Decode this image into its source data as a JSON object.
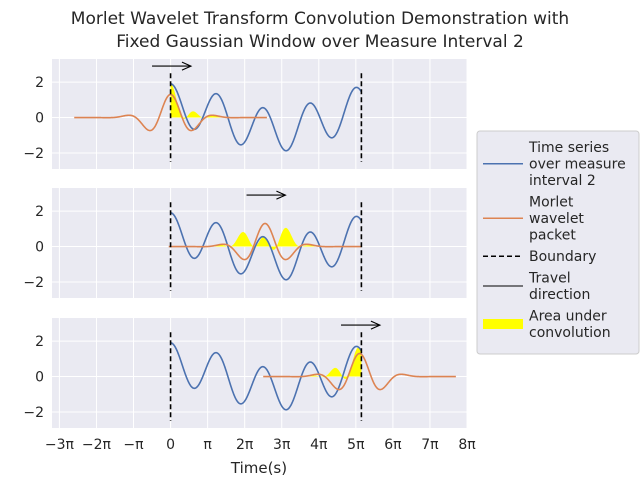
{
  "chart_data": {
    "type": "line",
    "title_lines": [
      "Morlet Wavelet Transform Convolution Demonstration with",
      "Fixed Gaussian Window over Measure Interval 2"
    ],
    "xlabel": "Time(s)",
    "xlim": [
      -3.2,
      8.0
    ],
    "ylim": [
      -2.9,
      3.3
    ],
    "x_ticks": [
      {
        "value": -3,
        "label": "−3π"
      },
      {
        "value": -2,
        "label": "−2π"
      },
      {
        "value": -1,
        "label": "−π"
      },
      {
        "value": 0,
        "label": "0"
      },
      {
        "value": 1,
        "label": "π"
      },
      {
        "value": 2,
        "label": "2π"
      },
      {
        "value": 3,
        "label": "3π"
      },
      {
        "value": 4,
        "label": "4π"
      },
      {
        "value": 5,
        "label": "5π"
      },
      {
        "value": 6,
        "label": "6π"
      },
      {
        "value": 7,
        "label": "7π"
      },
      {
        "value": 8,
        "label": "8π"
      }
    ],
    "y_ticks": [
      {
        "value": 2,
        "label": "2"
      },
      {
        "value": 0,
        "label": "0"
      },
      {
        "value": -2,
        "label": "−2"
      }
    ],
    "x_unit": "pi",
    "boundaries": [
      0,
      5.15
    ],
    "time_series": {
      "name": "Time series over measure interval 2",
      "color": "#4c72b0",
      "x_range": [
        0,
        5.15
      ],
      "components": [
        {
          "amplitude": 1.2,
          "frequency": 1.6
        },
        {
          "amplitude": 0.7,
          "frequency": 0.35
        }
      ]
    },
    "wavelet": {
      "name": "Morlet wavelet packet",
      "color": "#dd8452",
      "amplitude": 1.3,
      "frequency": 1.6,
      "gaussian_sigma": 0.55,
      "half_width": 2.6
    },
    "panels": [
      {
        "wavelet_center": 0.0,
        "arrow": {
          "from": -0.5,
          "to": 0.55,
          "y": 2.9
        }
      },
      {
        "wavelet_center": 2.55,
        "arrow": {
          "from": 2.05,
          "to": 3.1,
          "y": 2.9
        }
      },
      {
        "wavelet_center": 5.1,
        "arrow": {
          "from": 4.6,
          "to": 5.65,
          "y": 2.9
        }
      }
    ],
    "fill_color": "#ffff00",
    "legend": {
      "placement": "right",
      "entries": [
        {
          "kind": "line",
          "color": "#4c72b0",
          "dash": false,
          "lines": [
            "Time series",
            "over measure",
            "interval 2"
          ]
        },
        {
          "kind": "line",
          "color": "#dd8452",
          "dash": false,
          "lines": [
            "Morlet",
            "wavelet",
            "packet"
          ]
        },
        {
          "kind": "line",
          "color": "#000000",
          "dash": true,
          "lines": [
            "Boundary"
          ]
        },
        {
          "kind": "thin",
          "color": "#000000",
          "dash": false,
          "lines": [
            "Travel",
            "direction"
          ]
        },
        {
          "kind": "patch",
          "color": "#ffff00",
          "dash": false,
          "lines": [
            "Area under",
            "convolution"
          ]
        }
      ]
    }
  }
}
